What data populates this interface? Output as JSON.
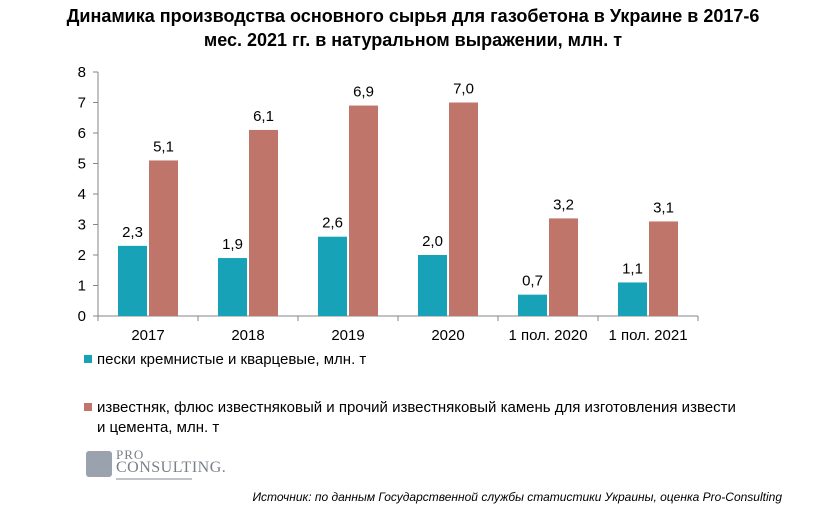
{
  "chart_data": {
    "type": "bar",
    "title": "Динамика производства основного сырья для газобетона в Украине в 2017-6 мес. 2021 гг. в натуральном выражении, млн. т",
    "title_lines": [
      "Динамика производства основного сырья для газобетона в Украине в 2017-6",
      "мес. 2021 гг. в натуральном выражении, млн. т"
    ],
    "categories": [
      "2017",
      "2018",
      "2019",
      "2020",
      "1 пол.  2020",
      "1 пол.  2021"
    ],
    "series": [
      {
        "name": "пески кремнистые и кварцевые, млн.  т",
        "color": "#17a2b8",
        "values": [
          2.3,
          1.9,
          2.6,
          2.0,
          0.7,
          1.1
        ],
        "labels": [
          "2,3",
          "1,9",
          "2,6",
          "2,0",
          "0,7",
          "1,1"
        ]
      },
      {
        "name": "известняк, флюс известняковый и прочий известняковый камень для изготовления извести и цемента, млн.  т",
        "color": "#c0756a",
        "values": [
          5.1,
          6.1,
          6.9,
          7.0,
          3.2,
          3.1
        ],
        "labels": [
          "5,1",
          "6,1",
          "6,9",
          "7,0",
          "3,2",
          "3,1"
        ]
      }
    ],
    "ylim": [
      0,
      8
    ],
    "yticks": [
      "0",
      "1",
      "2",
      "3",
      "4",
      "5",
      "6",
      "7",
      "8"
    ],
    "xlabel": "",
    "ylabel": "",
    "grid": false,
    "legend_position": "bottom"
  },
  "legend": {
    "item1": "пески кремнистые и кварцевые, млн.  т",
    "item2": "известняк, флюс известняковый и прочий известняковый камень для изготовления извести и цемента, млн.  т"
  },
  "logo": {
    "line1": "PRO",
    "line2": "CONSULTING."
  },
  "source": "Источник: по данным Государственной службы статистики Украины, оценка Pro-Consulting"
}
